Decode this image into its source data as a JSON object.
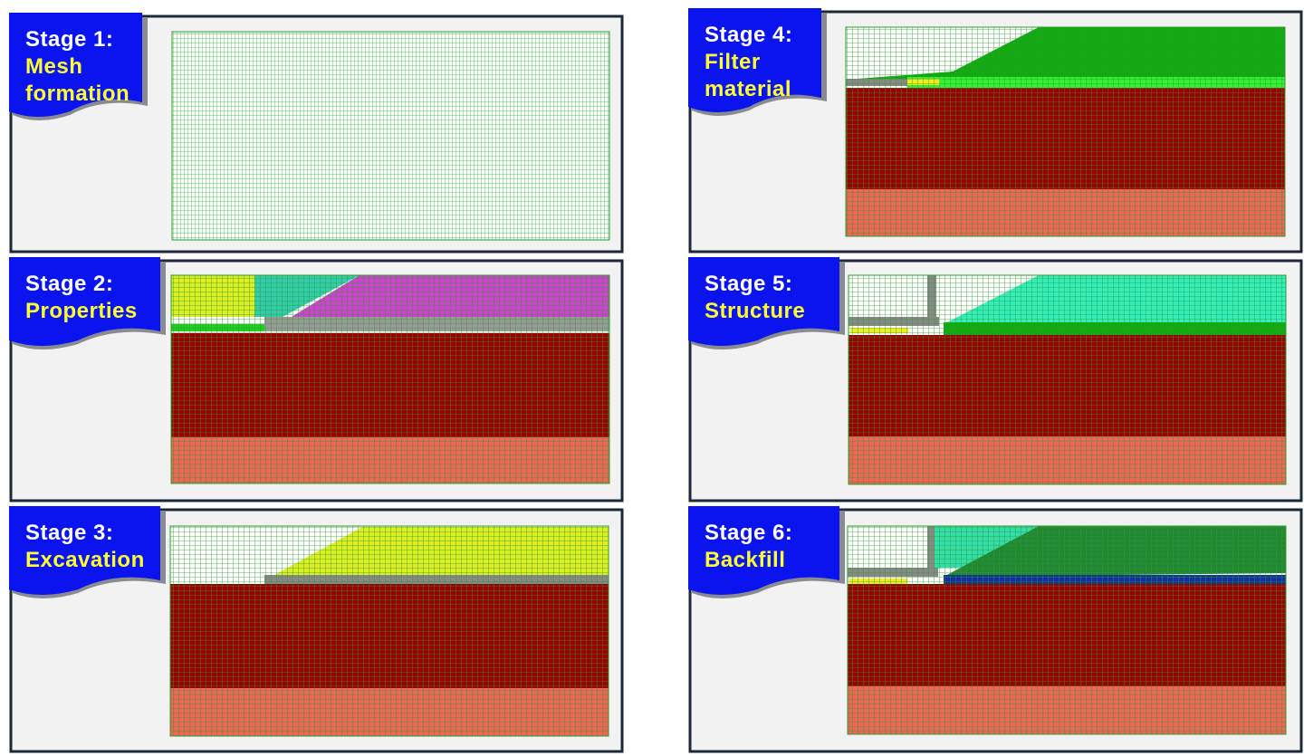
{
  "panels": [
    {
      "stage": "Stage 1:",
      "title": [
        "Mesh",
        "formation"
      ]
    },
    {
      "stage": "Stage 4:",
      "title": [
        "Filter",
        "material"
      ]
    },
    {
      "stage": "Stage 2:",
      "title": [
        "Properties"
      ]
    },
    {
      "stage": "Stage 5:",
      "title": [
        "Structure"
      ]
    },
    {
      "stage": "Stage 3:",
      "title": [
        "Excavation"
      ]
    },
    {
      "stage": "Stage 6:",
      "title": [
        "Backfill"
      ]
    }
  ]
}
